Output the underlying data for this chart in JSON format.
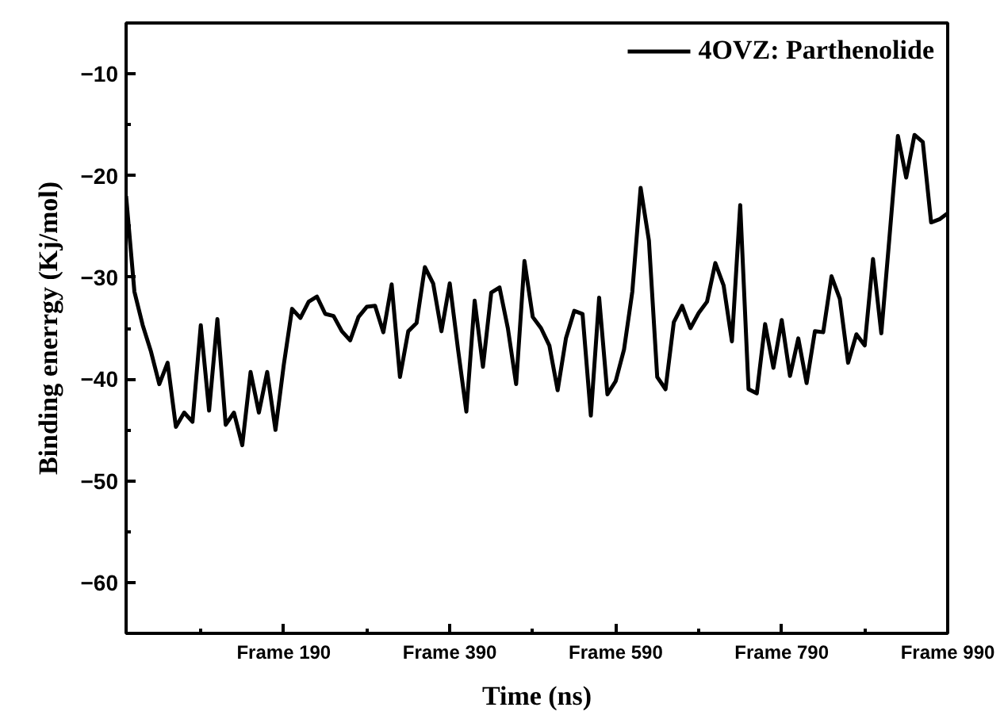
{
  "chart_data": {
    "type": "line",
    "xlabel": "Time (ns)",
    "ylabel": "Binding enerrgy (Kj/mol)",
    "categories": [
      null,
      null,
      null,
      null,
      null,
      null,
      null,
      null,
      null,
      null,
      null,
      null,
      null,
      null,
      null,
      null,
      null,
      null,
      null,
      "Frame 190",
      null,
      null,
      null,
      null,
      null,
      null,
      null,
      null,
      null,
      null,
      null,
      null,
      null,
      null,
      null,
      null,
      null,
      null,
      null,
      "Frame 390",
      null,
      null,
      null,
      null,
      null,
      null,
      null,
      null,
      null,
      null,
      null,
      null,
      null,
      null,
      null,
      null,
      null,
      null,
      null,
      "Frame 590",
      null,
      null,
      null,
      null,
      null,
      null,
      null,
      null,
      null,
      null,
      null,
      null,
      null,
      null,
      null,
      null,
      null,
      null,
      null,
      "Frame 790",
      null,
      null,
      null,
      null,
      null,
      null,
      null,
      null,
      null,
      null,
      null,
      null,
      null,
      null,
      null,
      null,
      null,
      null,
      null,
      "Frame 990"
    ],
    "ylim": [
      -65,
      -5
    ],
    "yticks": [
      -10,
      -20,
      -30,
      -40,
      -50,
      -60
    ],
    "grid": false,
    "legend": "top right",
    "marker": "none",
    "line_style": "solid",
    "series": [
      {
        "name": "4OVZ: Parthenolide",
        "color": "#000000",
        "values": [
          -22.0,
          -31.4,
          -34.7,
          -37.3,
          -40.5,
          -38.4,
          -44.7,
          -43.3,
          -44.2,
          -34.7,
          -43.1,
          -34.1,
          -44.5,
          -43.3,
          -46.5,
          -39.3,
          -43.3,
          -39.3,
          -45.0,
          -38.6,
          -33.1,
          -34.0,
          -32.4,
          -31.9,
          -33.6,
          -33.8,
          -35.3,
          -36.2,
          -33.9,
          -32.9,
          -32.8,
          -35.4,
          -30.7,
          -39.8,
          -35.3,
          -34.5,
          -29.0,
          -30.6,
          -35.3,
          -30.6,
          -37.1,
          -43.2,
          -32.3,
          -38.8,
          -31.5,
          -31.0,
          -35.0,
          -40.5,
          -28.4,
          -33.9,
          -35.0,
          -36.7,
          -41.1,
          -36.0,
          -33.3,
          -33.6,
          -43.6,
          -32.0,
          -41.5,
          -40.2,
          -37.1,
          -31.4,
          -21.2,
          -26.4,
          -39.8,
          -41.0,
          -34.4,
          -32.8,
          -35.0,
          -33.5,
          -32.4,
          -28.6,
          -30.8,
          -36.3,
          -22.9,
          -41.0,
          -41.4,
          -34.6,
          -38.9,
          -34.2,
          -39.7,
          -36.0,
          -40.4,
          -35.3,
          -35.4,
          -29.9,
          -32.1,
          -38.4,
          -35.6,
          -36.7,
          -28.2,
          -35.5,
          -25.9,
          -16.1,
          -20.2,
          -16.0,
          -16.7,
          -24.6,
          -24.3,
          -23.7
        ]
      }
    ]
  }
}
